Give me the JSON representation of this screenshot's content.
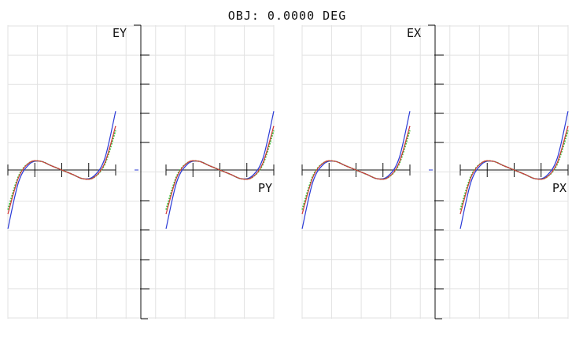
{
  "title": "OBJ: 0.0000 DEG",
  "colors": {
    "grid": "#e2e2e2",
    "axis": "#111111",
    "blue": "#2a3ad6",
    "green": "#2fbf2f",
    "red": "#d23a3a",
    "green_dotted": "#22a52a"
  },
  "panels": [
    {
      "id": "ey",
      "axis_label": "EY",
      "pupil_label": "PY"
    },
    {
      "id": "ex",
      "axis_label": "EX",
      "pupil_label": "PX"
    }
  ],
  "chart_data": [
    {
      "type": "line",
      "title": "OBJ: 0.0000 DEG",
      "ylabel": "EY",
      "xlabel": "PY",
      "xlim": [
        -1,
        1
      ],
      "ylim": [
        -1,
        1
      ],
      "grid": true,
      "series": [
        {
          "color": "#2a3ad6",
          "x": [
            -1.0,
            -0.8,
            -0.6,
            -0.4,
            -0.2,
            0.0,
            0.2,
            0.4,
            0.6,
            0.8,
            1.0
          ],
          "y": [
            -0.4,
            -0.08,
            0.04,
            0.06,
            0.03,
            0.0,
            -0.03,
            -0.06,
            -0.04,
            0.08,
            0.4
          ]
        },
        {
          "color": "#2fbf2f",
          "x": [
            -1.0,
            -0.8,
            -0.6,
            -0.4,
            -0.2,
            0.0,
            0.2,
            0.4,
            0.6,
            0.8,
            1.0
          ],
          "y": [
            -0.27,
            -0.04,
            0.05,
            0.06,
            0.03,
            0.0,
            -0.03,
            -0.06,
            -0.05,
            0.04,
            0.27
          ]
        },
        {
          "color": "#d23a3a",
          "x": [
            -1.0,
            -0.8,
            -0.6,
            -0.4,
            -0.2,
            0.0,
            0.2,
            0.4,
            0.6,
            0.8,
            1.0
          ],
          "y": [
            -0.3,
            -0.05,
            0.05,
            0.06,
            0.03,
            0.0,
            -0.03,
            -0.06,
            -0.05,
            0.05,
            0.3
          ]
        }
      ]
    },
    {
      "type": "line",
      "ylabel": "EX",
      "xlabel": "PX",
      "xlim": [
        -1,
        1
      ],
      "ylim": [
        -1,
        1
      ],
      "grid": true,
      "series": [
        {
          "color": "#2a3ad6",
          "x": [
            -1.0,
            -0.8,
            -0.6,
            -0.4,
            -0.2,
            0.0,
            0.2,
            0.4,
            0.6,
            0.8,
            1.0
          ],
          "y": [
            -0.4,
            -0.08,
            0.04,
            0.06,
            0.03,
            0.0,
            -0.03,
            -0.06,
            -0.04,
            0.08,
            0.4
          ]
        },
        {
          "color": "#2fbf2f",
          "x": [
            -1.0,
            -0.8,
            -0.6,
            -0.4,
            -0.2,
            0.0,
            0.2,
            0.4,
            0.6,
            0.8,
            1.0
          ],
          "y": [
            -0.27,
            -0.04,
            0.05,
            0.06,
            0.03,
            0.0,
            -0.03,
            -0.06,
            -0.05,
            0.04,
            0.27
          ]
        },
        {
          "color": "#d23a3a",
          "x": [
            -1.0,
            -0.8,
            -0.6,
            -0.4,
            -0.2,
            0.0,
            0.2,
            0.4,
            0.6,
            0.8,
            1.0
          ],
          "y": [
            -0.3,
            -0.05,
            0.05,
            0.06,
            0.03,
            0.0,
            -0.03,
            -0.06,
            -0.05,
            0.05,
            0.3
          ]
        }
      ]
    }
  ]
}
